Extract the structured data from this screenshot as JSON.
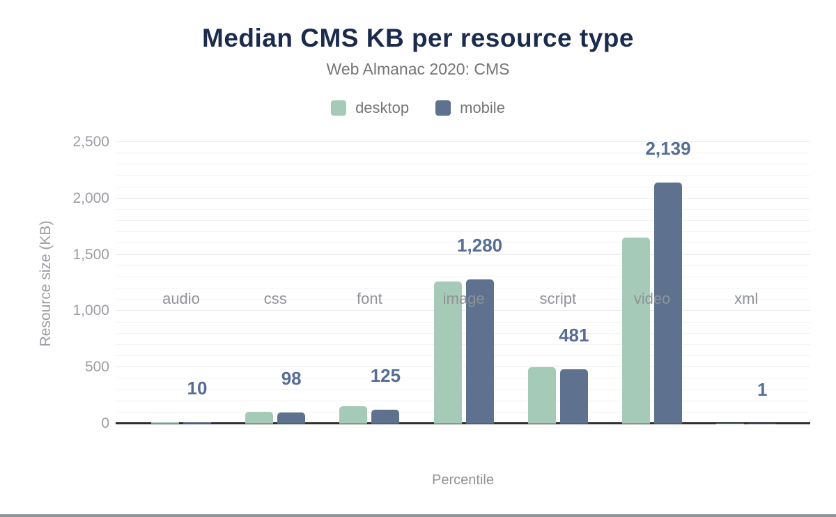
{
  "chart_data": {
    "type": "bar",
    "title": "Median CMS KB per resource type",
    "subtitle": "Web Almanac 2020: CMS",
    "xlabel": "Percentile",
    "ylabel": "Resource size (KB)",
    "categories": [
      "audio",
      "css",
      "font",
      "image",
      "script",
      "video",
      "xml"
    ],
    "series": [
      {
        "name": "desktop",
        "color": "#a6cab8",
        "values": [
          15,
          105,
          155,
          1260,
          500,
          1655,
          1
        ]
      },
      {
        "name": "mobile",
        "color": "#5e7290",
        "values": [
          10,
          98,
          125,
          1280,
          481,
          2139,
          1
        ]
      }
    ],
    "data_labels": {
      "annotated_series": "mobile",
      "values": [
        "10",
        "98",
        "125",
        "1,280",
        "481",
        "2,139",
        "1"
      ]
    },
    "ylim": [
      0,
      2500
    ],
    "yticks": [
      0,
      500,
      1000,
      1500,
      2000,
      2500
    ],
    "ytick_labels": [
      "0",
      "500",
      "1,000",
      "1,500",
      "2,000",
      "2,500"
    ],
    "minor_grid_step": 100,
    "grid": "horizontal",
    "legend_position": "top"
  },
  "colors": {
    "title": "#1a2b4d",
    "subtitle": "#757575",
    "axis_text": "#9a9da2",
    "data_label": "#576d96",
    "axis_line": "#2f2f2f",
    "major_grid": "#e9e9e9",
    "minor_grid": "#f3f3f3",
    "desktop_bar": "#a6cab8",
    "mobile_bar": "#5e7290"
  }
}
